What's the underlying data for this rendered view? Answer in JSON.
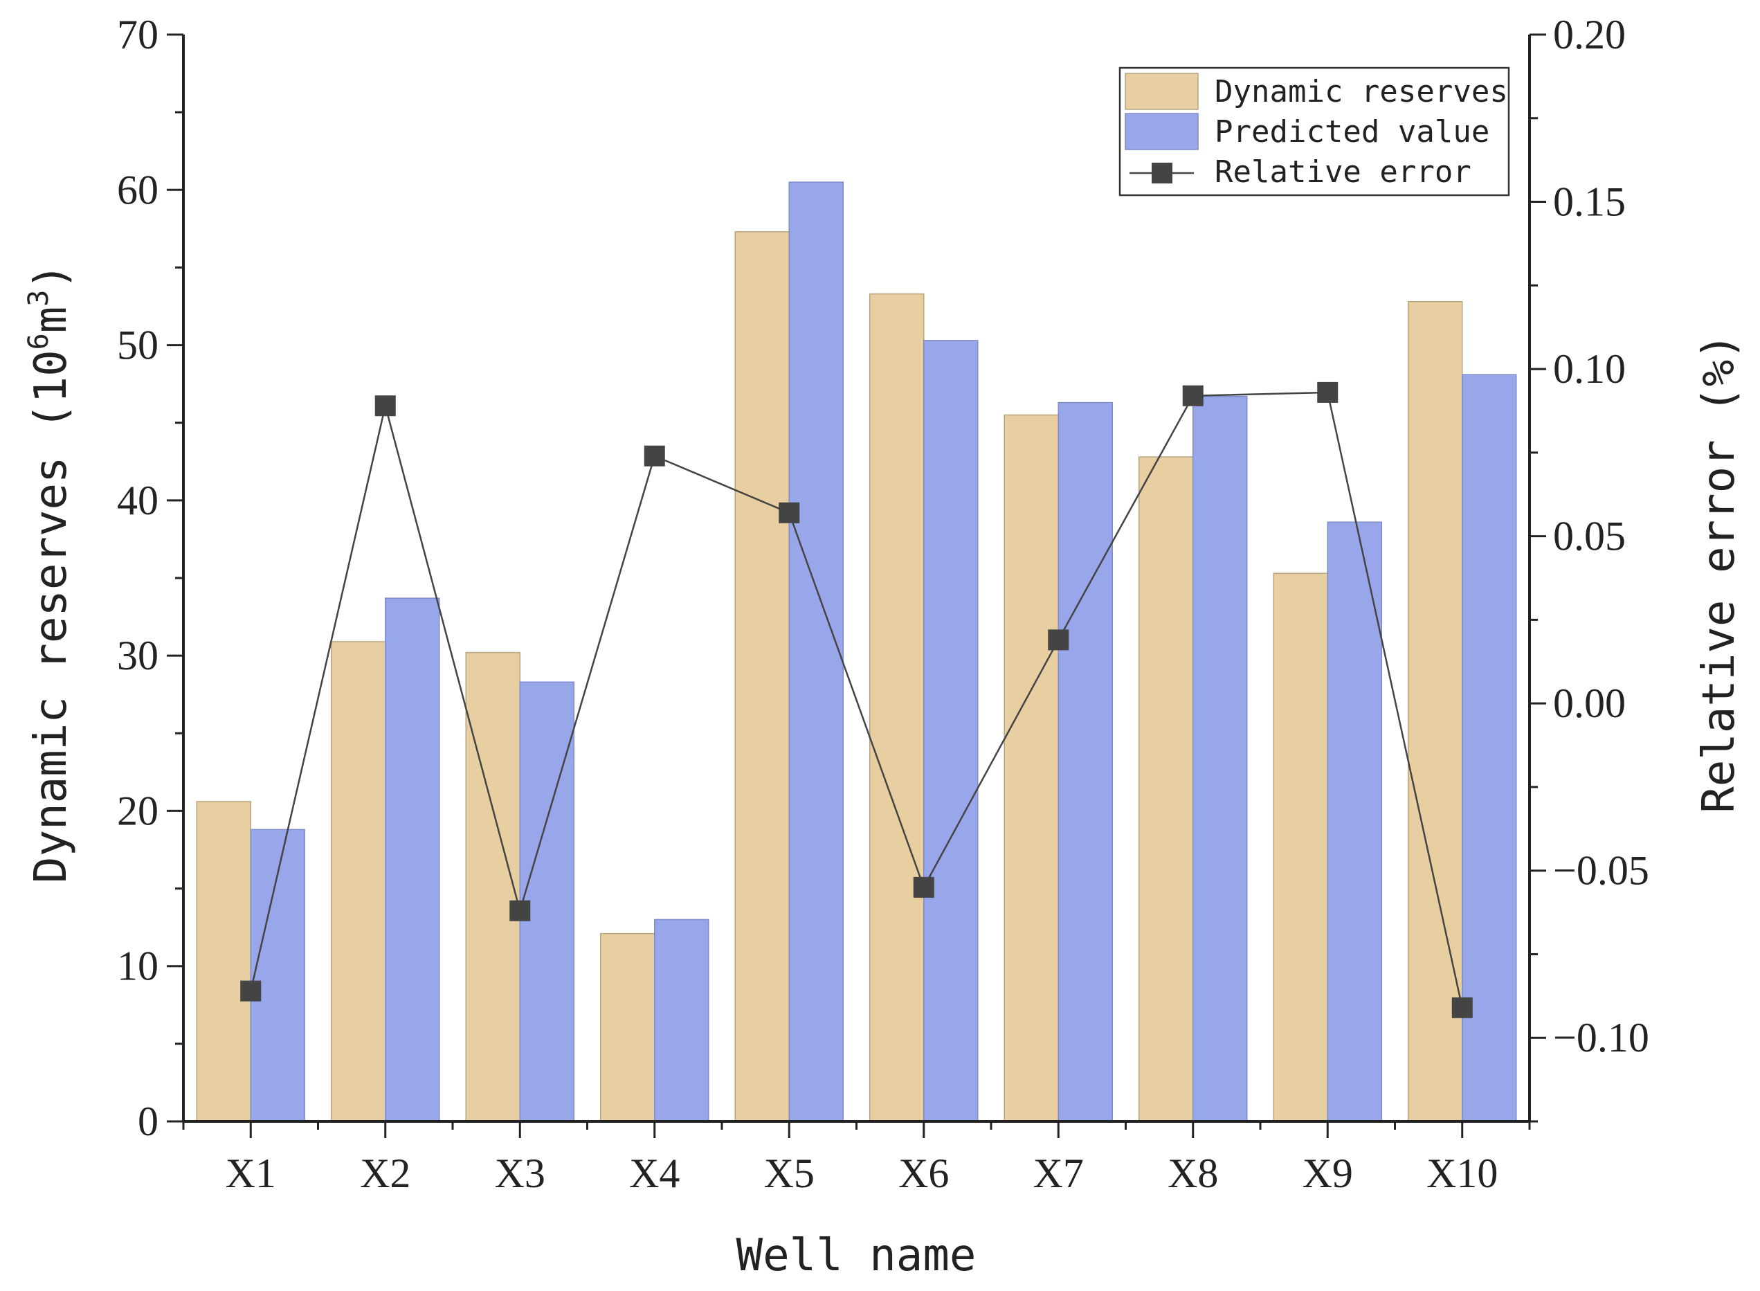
{
  "chart_data": {
    "type": "bar",
    "categories": [
      "X1",
      "X2",
      "X3",
      "X4",
      "X5",
      "X6",
      "X7",
      "X8",
      "X9",
      "X10"
    ],
    "series": [
      {
        "name": "Dynamic reserves",
        "axis": "left",
        "kind": "bar",
        "color": "#e8cfa1",
        "values": [
          20.6,
          30.9,
          30.2,
          12.1,
          57.3,
          53.3,
          45.5,
          42.8,
          35.3,
          52.8
        ]
      },
      {
        "name": "Predicted value",
        "axis": "left",
        "kind": "bar",
        "color": "#98a6ea",
        "values": [
          18.8,
          33.7,
          28.3,
          13.0,
          60.5,
          50.3,
          46.3,
          46.7,
          38.6,
          48.1
        ]
      },
      {
        "name": "Relative error",
        "axis": "right",
        "kind": "line",
        "color": "#444444",
        "values": [
          -0.086,
          0.089,
          -0.062,
          0.074,
          0.057,
          -0.055,
          0.019,
          0.092,
          0.093,
          -0.091
        ]
      }
    ],
    "xlabel": "Well name",
    "ylabel_parts": [
      "Dynamic reserves (10",
      "6",
      "m",
      "3",
      ")"
    ],
    "y2label": "Relative error (%)",
    "ylim": [
      0,
      70
    ],
    "yticks": [
      0,
      10,
      20,
      30,
      40,
      50,
      60,
      70
    ],
    "ytick_labels": [
      "0",
      "10",
      "20",
      "30",
      "40",
      "50",
      "60",
      "70"
    ],
    "y2lim": [
      -0.125,
      0.2
    ],
    "y2ticks": [
      -0.1,
      -0.05,
      0.0,
      0.05,
      0.1,
      0.15,
      0.2
    ],
    "y2tick_labels": [
      "−0.10",
      "−0.05",
      "0.00",
      "0.05",
      "0.10",
      "0.15",
      "0.20"
    ],
    "legend": "top-right",
    "grid": false
  }
}
